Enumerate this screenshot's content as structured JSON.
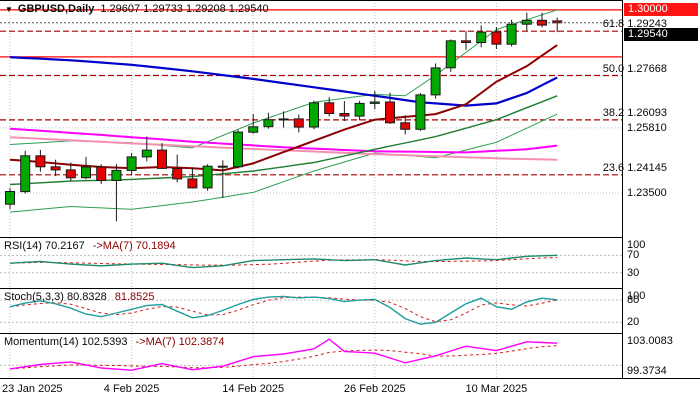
{
  "header": {
    "symbol_timeframe": "GBPUSD,Daily",
    "ohlc": "1.29607 1.29733 1.29208 1.29540",
    "dropdown_icon": "▼"
  },
  "price_axis": {
    "ticks": [
      {
        "price": 1.2581,
        "label": "1.25810"
      },
      {
        "price": 1.235,
        "label": "1.23500"
      }
    ],
    "badges": [
      {
        "label": "1.30000",
        "price": 1.3,
        "bg": "#ff1414"
      },
      {
        "label": "1.29540",
        "price": 1.2954,
        "bg": "#000000"
      }
    ]
  },
  "chart_data": {
    "type": "candlestick",
    "symbol": "GBPUSD",
    "timeframe": "Daily",
    "current_ohlc": {
      "open": 1.29607,
      "high": 1.29733,
      "low": 1.29208,
      "close": 1.2954
    },
    "current_price": 1.2954,
    "style": {
      "up_color": "#00a800",
      "down_color": "#e60000",
      "outline": "#1a1a1a",
      "grid_color": "#c4c4c4"
    },
    "time_labels": [
      {
        "idx": 0,
        "text": "23 Jan 2025"
      },
      {
        "idx": 8,
        "text": "4 Feb 2025"
      },
      {
        "idx": 16,
        "text": "14 Feb 2025"
      },
      {
        "idx": 24,
        "text": "26 Feb 2025"
      },
      {
        "idx": 32,
        "text": "10 Mar 2025"
      }
    ],
    "candles": [
      [
        1.231,
        1.2368,
        1.2292,
        1.2355
      ],
      [
        1.2355,
        1.25,
        1.2348,
        1.2482
      ],
      [
        1.2482,
        1.2503,
        1.2425,
        1.2443
      ],
      [
        1.2443,
        1.2468,
        1.241,
        1.2432
      ],
      [
        1.2432,
        1.2458,
        1.2392,
        1.2404
      ],
      [
        1.2404,
        1.2478,
        1.2398,
        1.2442
      ],
      [
        1.2442,
        1.2452,
        1.2382,
        1.2394
      ],
      [
        1.2394,
        1.2452,
        1.2249,
        1.243
      ],
      [
        1.243,
        1.2492,
        1.2412,
        1.2478
      ],
      [
        1.2478,
        1.255,
        1.2462,
        1.2502
      ],
      [
        1.2502,
        1.2527,
        1.2435,
        1.2437
      ],
      [
        1.2437,
        1.2486,
        1.2388,
        1.24
      ],
      [
        1.24,
        1.2441,
        1.2366,
        1.2368
      ],
      [
        1.2368,
        1.2452,
        1.2358,
        1.2445
      ],
      [
        1.2445,
        1.2466,
        1.2332,
        1.2443
      ],
      [
        1.2443,
        1.2575,
        1.2437,
        1.2566
      ],
      [
        1.2566,
        1.263,
        1.256,
        1.2585
      ],
      [
        1.2585,
        1.2635,
        1.2578,
        1.261
      ],
      [
        1.261,
        1.264,
        1.2582,
        1.2613
      ],
      [
        1.2613,
        1.2628,
        1.2565,
        1.2584
      ],
      [
        1.2584,
        1.2678,
        1.2576,
        1.267
      ],
      [
        1.267,
        1.269,
        1.2622,
        1.2632
      ],
      [
        1.2632,
        1.2676,
        1.2605,
        1.2623
      ],
      [
        1.2623,
        1.2677,
        1.2608,
        1.2668
      ],
      [
        1.2668,
        1.2712,
        1.2647,
        1.2673
      ],
      [
        1.2673,
        1.2706,
        1.2595,
        1.2599
      ],
      [
        1.2599,
        1.2626,
        1.2558,
        1.2576
      ],
      [
        1.2576,
        1.2705,
        1.257,
        1.2698
      ],
      [
        1.2698,
        1.281,
        1.2685,
        1.2794
      ],
      [
        1.2794,
        1.2895,
        1.278,
        1.289
      ],
      [
        1.289,
        1.2925,
        1.2858,
        1.2884
      ],
      [
        1.2884,
        1.2945,
        1.2867,
        1.2921
      ],
      [
        1.2921,
        1.2939,
        1.2861,
        1.2878
      ],
      [
        1.2878,
        1.2965,
        1.287,
        1.2949
      ],
      [
        1.2949,
        1.299,
        1.2925,
        1.2963
      ],
      [
        1.2963,
        1.299,
        1.2938,
        1.2946
      ],
      [
        1.29607,
        1.29733,
        1.29208,
        1.2954
      ]
    ],
    "overlays": [
      {
        "name": "band-upper",
        "color": "#2e9e4f",
        "width": 1,
        "points": [
          [
            0,
            1.2522
          ],
          [
            4,
            1.2535
          ],
          [
            8,
            1.2528
          ],
          [
            12,
            1.251
          ],
          [
            16,
            1.2598
          ],
          [
            20,
            1.2672
          ],
          [
            24,
            1.27
          ],
          [
            26,
            1.2695
          ],
          [
            28,
            1.2768
          ],
          [
            32,
            1.293
          ],
          [
            36,
            1.3
          ]
        ]
      },
      {
        "name": "band-lower",
        "color": "#2e9e4f",
        "width": 1,
        "points": [
          [
            0,
            1.2282
          ],
          [
            4,
            1.2302
          ],
          [
            8,
            1.2292
          ],
          [
            12,
            1.2318
          ],
          [
            16,
            1.2352
          ],
          [
            20,
            1.2428
          ],
          [
            24,
            1.2492
          ],
          [
            28,
            1.2475
          ],
          [
            32,
            1.253
          ],
          [
            36,
            1.263
          ]
        ]
      },
      {
        "name": "ma-pink",
        "color": "#f48fb1",
        "width": 2,
        "points": [
          [
            0,
            1.2548
          ],
          [
            8,
            1.2526
          ],
          [
            16,
            1.2506
          ],
          [
            24,
            1.2488
          ],
          [
            32,
            1.2473
          ],
          [
            36,
            1.2468
          ]
        ]
      },
      {
        "name": "ma-magenta",
        "color": "#ff00ff",
        "width": 2,
        "points": [
          [
            0,
            1.2578
          ],
          [
            6,
            1.2556
          ],
          [
            12,
            1.2532
          ],
          [
            18,
            1.2512
          ],
          [
            24,
            1.2498
          ],
          [
            30,
            1.2494
          ],
          [
            34,
            1.2505
          ],
          [
            36,
            1.2518
          ]
        ]
      },
      {
        "name": "ma-green",
        "color": "#1e7d32",
        "width": 1.4,
        "points": [
          [
            0,
            1.238
          ],
          [
            4,
            1.2392
          ],
          [
            8,
            1.2398
          ],
          [
            12,
            1.2408
          ],
          [
            16,
            1.2428
          ],
          [
            20,
            1.2458
          ],
          [
            24,
            1.2505
          ],
          [
            28,
            1.255
          ],
          [
            32,
            1.261
          ],
          [
            36,
            1.2695
          ]
        ]
      },
      {
        "name": "ma-blue",
        "color": "#0000cd",
        "width": 2.2,
        "points": [
          [
            0,
            1.2832
          ],
          [
            4,
            1.2821
          ],
          [
            8,
            1.2805
          ],
          [
            12,
            1.2782
          ],
          [
            16,
            1.2755
          ],
          [
            20,
            1.2725
          ],
          [
            24,
            1.2695
          ],
          [
            27,
            1.2672
          ],
          [
            30,
            1.266
          ],
          [
            32,
            1.2668
          ],
          [
            34,
            1.2705
          ],
          [
            36,
            1.276
          ]
        ]
      },
      {
        "name": "ma-maroon",
        "color": "#8b0000",
        "width": 2,
        "points": [
          [
            0,
            1.2468
          ],
          [
            2,
            1.246
          ],
          [
            4,
            1.245
          ],
          [
            6,
            1.2442
          ],
          [
            8,
            1.2438
          ],
          [
            10,
            1.2442
          ],
          [
            12,
            1.2438
          ],
          [
            14,
            1.243
          ],
          [
            16,
            1.2455
          ],
          [
            18,
            1.2495
          ],
          [
            20,
            1.2535
          ],
          [
            22,
            1.2575
          ],
          [
            24,
            1.261
          ],
          [
            26,
            1.262
          ],
          [
            28,
            1.263
          ],
          [
            30,
            1.2665
          ],
          [
            32,
            1.2745
          ],
          [
            34,
            1.28
          ],
          [
            36,
            1.2875
          ]
        ]
      }
    ],
    "hlines": [
      {
        "price": 1.3,
        "color": "#ff0000",
        "style": "solid"
      },
      {
        "price": 1.2833,
        "color": "#ff0000",
        "style": "solid"
      },
      {
        "price": 1.29243,
        "color": "#aa0000",
        "style": "dash"
      },
      {
        "price": 1.27668,
        "color": "#aa0000",
        "style": "dash"
      },
      {
        "price": 1.26093,
        "color": "#aa0000",
        "style": "dash"
      },
      {
        "price": 1.24145,
        "color": "#aa0000",
        "style": "dash"
      }
    ],
    "fib_labels": [
      {
        "text": "61.8 1.29243",
        "price": 1.29243
      },
      {
        "text": "50.0 1.27668",
        "price": 1.27668
      },
      {
        "text": "38.2 1.26093",
        "price": 1.26093
      },
      {
        "text": "23.6 1.24145",
        "price": 1.24145
      }
    ],
    "panels": [
      {
        "name": "rsi",
        "label": "RSI(14) 70.2167",
        "label2": "->MA(7) 70.1894",
        "axis_ticks": [
          {
            "v": 100,
            "label": "100"
          },
          {
            "v": 70,
            "label": "70"
          },
          {
            "v": 30,
            "label": "30"
          }
        ],
        "levels": [
          70,
          30
        ],
        "vmax": 110,
        "vmin": -5,
        "line_color": "#1f8a70",
        "signal_color": "#cc2222",
        "signal_window": 7,
        "points": [
          [
            0,
            52
          ],
          [
            2,
            56
          ],
          [
            4,
            50
          ],
          [
            6,
            46
          ],
          [
            8,
            50
          ],
          [
            10,
            52
          ],
          [
            12,
            42
          ],
          [
            14,
            46
          ],
          [
            16,
            58
          ],
          [
            18,
            60
          ],
          [
            20,
            62
          ],
          [
            22,
            58
          ],
          [
            24,
            60
          ],
          [
            26,
            48
          ],
          [
            28,
            58
          ],
          [
            30,
            64
          ],
          [
            32,
            60
          ],
          [
            34,
            68
          ],
          [
            36,
            70.2
          ]
        ]
      },
      {
        "name": "stoch",
        "label": "Stoch(5,3,3) 80.8328",
        "label2": "81.8525",
        "axis_ticks": [
          {
            "v": 100,
            "label": "100"
          },
          {
            "v": 80,
            "label": "80"
          },
          {
            "v": 20,
            "label": "20"
          }
        ],
        "levels": [
          80,
          20
        ],
        "vmax": 110,
        "vmin": -9,
        "line_color": "#1f9e9e",
        "signal_color": "#cc2222",
        "signal_window": 3,
        "points": [
          [
            0,
            62
          ],
          [
            1,
            72
          ],
          [
            2,
            78
          ],
          [
            3,
            70
          ],
          [
            4,
            58
          ],
          [
            5,
            42
          ],
          [
            6,
            35
          ],
          [
            7,
            45
          ],
          [
            8,
            55
          ],
          [
            9,
            65
          ],
          [
            10,
            68
          ],
          [
            11,
            50
          ],
          [
            12,
            32
          ],
          [
            13,
            38
          ],
          [
            14,
            52
          ],
          [
            15,
            68
          ],
          [
            16,
            82
          ],
          [
            17,
            88
          ],
          [
            18,
            90
          ],
          [
            19,
            86
          ],
          [
            20,
            88
          ],
          [
            21,
            84
          ],
          [
            22,
            76
          ],
          [
            23,
            80
          ],
          [
            24,
            82
          ],
          [
            25,
            60
          ],
          [
            26,
            30
          ],
          [
            27,
            15
          ],
          [
            28,
            20
          ],
          [
            29,
            45
          ],
          [
            30,
            70
          ],
          [
            31,
            85
          ],
          [
            32,
            62
          ],
          [
            33,
            55
          ],
          [
            34,
            75
          ],
          [
            35,
            85
          ],
          [
            36,
            80.8
          ]
        ]
      },
      {
        "name": "momentum",
        "label": "Momentum(14) 102.5393",
        "label2": "->MA(7) 102.3874",
        "axis_ticks": [
          {
            "v": 103.0083,
            "label": "103.0083"
          },
          {
            "v": 99.3734,
            "label": "99.3734"
          }
        ],
        "levels": [
          100
        ],
        "vmax": 103.6,
        "vmin": 98.55,
        "line_color": "#ff00ff",
        "signal_color": "#cc2222",
        "signal_window": 7,
        "points": [
          [
            0,
            99.6
          ],
          [
            2,
            100.1
          ],
          [
            4,
            100.4
          ],
          [
            6,
            99.7
          ],
          [
            8,
            99.45
          ],
          [
            10,
            100.2
          ],
          [
            12,
            99.5
          ],
          [
            14,
            99.9
          ],
          [
            16,
            101.0
          ],
          [
            18,
            101.3
          ],
          [
            20,
            101.9
          ],
          [
            21,
            103.0
          ],
          [
            22,
            101.6
          ],
          [
            24,
            101.4
          ],
          [
            26,
            100.3
          ],
          [
            28,
            101.1
          ],
          [
            30,
            102.2
          ],
          [
            32,
            101.7
          ],
          [
            34,
            102.7
          ],
          [
            36,
            102.54
          ]
        ]
      }
    ]
  }
}
